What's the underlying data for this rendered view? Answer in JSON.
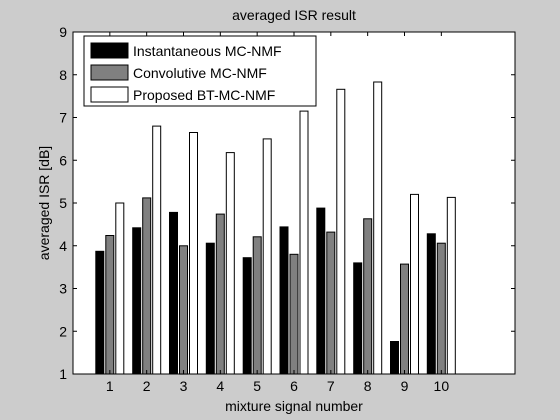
{
  "figure": {
    "background": "#cccccc"
  },
  "chart_data": {
    "type": "bar",
    "title": "averaged ISR result",
    "xlabel": "mixture signal number",
    "ylabel": "averaged ISR [dB]",
    "categories": [
      "1",
      "2",
      "3",
      "4",
      "5",
      "6",
      "7",
      "8",
      "9",
      "10"
    ],
    "xlim": [
      0,
      12
    ],
    "ylim": [
      1,
      9
    ],
    "yticks": [
      "1",
      "2",
      "3",
      "4",
      "5",
      "6",
      "7",
      "8",
      "9"
    ],
    "grid": false,
    "legend": {
      "placement": "top-left"
    },
    "series": [
      {
        "name": "Instantaneous MC-NMF",
        "color": "#000000",
        "values": [
          3.87,
          4.42,
          4.78,
          4.06,
          3.72,
          4.44,
          4.88,
          3.6,
          1.76,
          4.28
        ]
      },
      {
        "name": "Convolutive MC-NMF",
        "color": "#808080",
        "values": [
          4.24,
          5.12,
          4.0,
          4.74,
          4.21,
          3.8,
          4.32,
          4.63,
          3.57,
          4.06
        ]
      },
      {
        "name": "Proposed BT-MC-NMF",
        "color": "#ffffff",
        "values": [
          5.0,
          6.8,
          6.65,
          6.18,
          6.5,
          7.15,
          7.66,
          7.83,
          5.2,
          5.13
        ]
      }
    ]
  }
}
